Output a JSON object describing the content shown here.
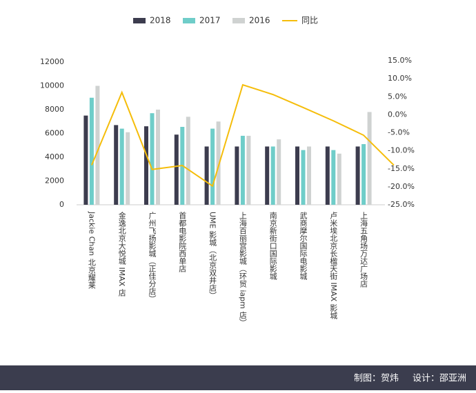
{
  "chart_data": {
    "type": "bar-line",
    "categories": [
      "Jackie Chan 北京耀莱",
      "金逸北京大悦城 IMAX 店",
      "广州飞扬影城（正佳分店）",
      "首都电影院西单店",
      "UME 影城（北京双井店）",
      "上海百丽宫影城（环贸 iapm 店）",
      "南京新街口国际影城",
      "武商摩尔国际电影城",
      "卢米埃北京长楹天街 IMAX 影城",
      "上海五角场万达广场店",
      null
    ],
    "series": [
      {
        "name": "2018",
        "color": "#3c3c4e",
        "values": [
          7500,
          6700,
          6600,
          5900,
          4900,
          4900,
          4900,
          4900,
          4900,
          4900,
          null
        ]
      },
      {
        "name": "2017",
        "color": "#6fcdc9",
        "values": [
          9000,
          6400,
          7700,
          6550,
          6400,
          5800,
          4900,
          4600,
          4600,
          5100,
          null
        ]
      },
      {
        "name": "2016",
        "color": "#cfd2d1",
        "values": [
          10000,
          6100,
          8000,
          7400,
          7000,
          5800,
          5500,
          4900,
          4300,
          7800,
          null
        ]
      },
      {
        "name": "同比",
        "color": "#f5bd0a",
        "axis": "y2",
        "values": [
          -14,
          6.2,
          -15.2,
          -14.1,
          -19.8,
          8.3,
          5.6,
          2,
          -1.7,
          -5.7,
          -14
        ]
      }
    ],
    "ylim": [
      0,
      12000
    ],
    "yticks": [
      0,
      2000,
      4000,
      6000,
      8000,
      10000,
      12000
    ],
    "y2lim": [
      -25,
      15
    ],
    "y2ticks": [
      {
        "value": -25,
        "label": "-25.0%"
      },
      {
        "value": -20,
        "label": "-20.0%"
      },
      {
        "value": -15,
        "label": "-15.0%"
      },
      {
        "value": -10,
        "label": "-10.0%"
      },
      {
        "value": -5,
        "label": "-5.0%"
      },
      {
        "value": 0,
        "label": "0.0%"
      },
      {
        "value": 5,
        "label": "5.0%"
      },
      {
        "value": 10,
        "label": "10.0%"
      },
      {
        "value": 15,
        "label": "15.0%"
      }
    ]
  },
  "footer": {
    "chart_by": "制图：贺炜",
    "design_by": "设计：邵亚洲"
  }
}
